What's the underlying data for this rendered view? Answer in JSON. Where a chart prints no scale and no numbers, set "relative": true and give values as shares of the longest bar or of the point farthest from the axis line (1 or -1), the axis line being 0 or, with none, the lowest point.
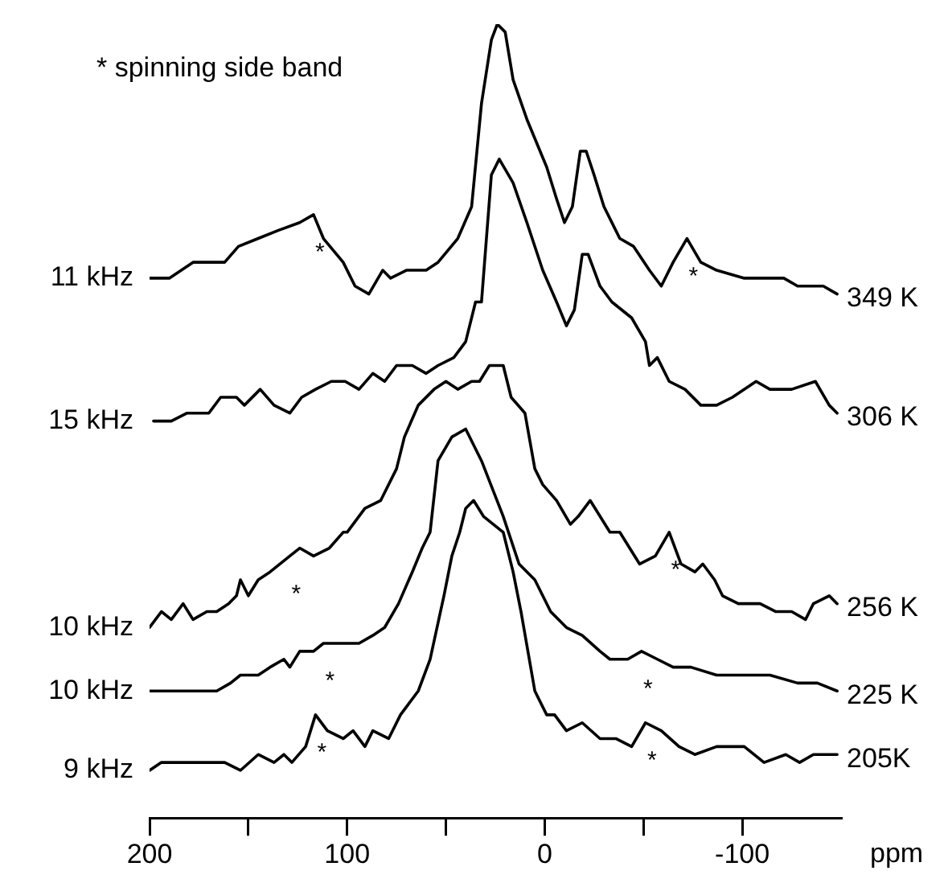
{
  "chart_data": {
    "type": "line",
    "relative": true,
    "xlabel": "ppm",
    "xlim": [
      200,
      -150
    ],
    "xticks": [
      200,
      {
        "value": 150,
        "label": null
      },
      100,
      {
        "value": 50,
        "label": null
      },
      0,
      {
        "value": -50,
        "label": null
      },
      -100
    ],
    "grid": false,
    "legend": false,
    "marker": "none",
    "line_style": "solid",
    "annotations": [
      "* spinning side band",
      {
        "text": "11 kHz",
        "x": 200,
        "y": 0.68
      },
      {
        "text": "15 kHz",
        "x": 200,
        "y": 0.5
      },
      {
        "text": "10 kHz",
        "x": 200,
        "y": 0.24
      },
      {
        "text": "10 kHz",
        "x": 200,
        "y": 0.16
      },
      {
        "text": "9 kHz",
        "x": 200,
        "y": 0.06
      },
      {
        "text": "*",
        "x": 117,
        "y": 0.76
      },
      {
        "text": "*",
        "x": -72,
        "y": 0.73
      },
      {
        "text": "*",
        "x": 129,
        "y": 0.33
      },
      {
        "text": "*",
        "x": -63,
        "y": 0.36
      },
      {
        "text": "*",
        "x": 112,
        "y": 0.22
      },
      {
        "text": "*",
        "x": -49,
        "y": 0.21
      },
      {
        "text": "*",
        "x": 116,
        "y": 0.13
      },
      {
        "text": "*",
        "x": -51,
        "y": 0.12
      }
    ],
    "series": [
      {
        "name": "349 K",
        "color": "#000000",
        "x": [
          200,
          190,
          178,
          162,
          155,
          145,
          135,
          124,
          117,
          112,
          102,
          96,
          89,
          82,
          78,
          70,
          60,
          54,
          44,
          37,
          32,
          27,
          24,
          20,
          16,
          9,
          -1,
          -6,
          -10,
          -14,
          -18,
          -21,
          -25,
          -30,
          -38,
          -45,
          -53,
          -59,
          -65,
          -72,
          -79,
          -87,
          -101,
          -111,
          -121,
          -128,
          -141,
          -148
        ],
        "values": [
          0.68,
          0.68,
          0.7,
          0.7,
          0.72,
          0.73,
          0.74,
          0.75,
          0.76,
          0.73,
          0.7,
          0.67,
          0.66,
          0.69,
          0.68,
          0.69,
          0.69,
          0.7,
          0.73,
          0.77,
          0.9,
          0.98,
          1.0,
          0.99,
          0.93,
          0.88,
          0.82,
          0.78,
          0.75,
          0.77,
          0.84,
          0.84,
          0.81,
          0.77,
          0.73,
          0.72,
          0.69,
          0.67,
          0.7,
          0.73,
          0.7,
          0.69,
          0.68,
          0.68,
          0.68,
          0.67,
          0.67,
          0.66
        ]
      },
      {
        "name": "306 K",
        "color": "#000000",
        "x": [
          198,
          189,
          181,
          170,
          164,
          156,
          152,
          144,
          137,
          129,
          123,
          116,
          108,
          101,
          94,
          87,
          81,
          75,
          67,
          60,
          54,
          46,
          40,
          35,
          32,
          27,
          23,
          16,
          9,
          1,
          -6,
          -11,
          -15,
          -19,
          -22,
          -28,
          -34,
          -44,
          -51,
          -53,
          -57,
          -63,
          -71,
          -79,
          -87,
          -95,
          -107,
          -114,
          -125,
          -137,
          -144,
          -148
        ],
        "values": [
          0.5,
          0.5,
          0.51,
          0.51,
          0.53,
          0.53,
          0.52,
          0.54,
          0.52,
          0.51,
          0.53,
          0.54,
          0.55,
          0.55,
          0.54,
          0.56,
          0.55,
          0.57,
          0.57,
          0.56,
          0.57,
          0.58,
          0.6,
          0.65,
          0.65,
          0.81,
          0.83,
          0.8,
          0.75,
          0.69,
          0.65,
          0.62,
          0.64,
          0.71,
          0.71,
          0.67,
          0.65,
          0.63,
          0.6,
          0.57,
          0.58,
          0.55,
          0.54,
          0.52,
          0.52,
          0.53,
          0.55,
          0.54,
          0.54,
          0.55,
          0.52,
          0.51
        ]
      },
      {
        "name": "256 K",
        "color": "#000000",
        "x": [
          200,
          194,
          189,
          183,
          178,
          171,
          166,
          160,
          156,
          154,
          150,
          145,
          139,
          129,
          124,
          117,
          109,
          102,
          100,
          91,
          83,
          75,
          71,
          64,
          56,
          50,
          44,
          37,
          33,
          28,
          21,
          17,
          10,
          5,
          1,
          -6,
          -13,
          -17,
          -23,
          -28,
          -33,
          -38,
          -48,
          -56,
          -63,
          -69,
          -76,
          -80,
          -86,
          -90,
          -98,
          -109,
          -117,
          -125,
          -132,
          -136,
          -144,
          -148
        ],
        "values": [
          0.24,
          0.26,
          0.25,
          0.27,
          0.25,
          0.26,
          0.26,
          0.27,
          0.28,
          0.3,
          0.28,
          0.3,
          0.31,
          0.33,
          0.34,
          0.33,
          0.34,
          0.36,
          0.36,
          0.39,
          0.4,
          0.44,
          0.48,
          0.52,
          0.54,
          0.55,
          0.54,
          0.55,
          0.55,
          0.57,
          0.57,
          0.53,
          0.51,
          0.44,
          0.42,
          0.4,
          0.37,
          0.38,
          0.4,
          0.38,
          0.36,
          0.36,
          0.32,
          0.33,
          0.36,
          0.32,
          0.31,
          0.32,
          0.3,
          0.28,
          0.27,
          0.27,
          0.26,
          0.26,
          0.25,
          0.27,
          0.28,
          0.27
        ]
      },
      {
        "name": "225 K",
        "color": "#000000",
        "x": [
          200,
          189,
          181,
          175,
          166,
          159,
          154,
          145,
          139,
          132,
          129,
          124,
          117,
          112,
          104,
          94,
          87,
          81,
          74,
          67,
          62,
          58,
          54,
          47,
          40,
          32,
          21,
          13,
          5,
          -3,
          -11,
          -19,
          -28,
          -33,
          -42,
          -49,
          -57,
          -65,
          -74,
          -87,
          -101,
          -114,
          -128,
          -138,
          -148
        ],
        "values": [
          0.16,
          0.16,
          0.16,
          0.16,
          0.16,
          0.17,
          0.18,
          0.18,
          0.19,
          0.2,
          0.19,
          0.21,
          0.21,
          0.22,
          0.22,
          0.22,
          0.23,
          0.24,
          0.27,
          0.31,
          0.34,
          0.36,
          0.45,
          0.48,
          0.49,
          0.45,
          0.38,
          0.32,
          0.3,
          0.26,
          0.24,
          0.23,
          0.21,
          0.2,
          0.2,
          0.21,
          0.2,
          0.19,
          0.19,
          0.18,
          0.18,
          0.18,
          0.17,
          0.17,
          0.16
        ]
      },
      {
        "name": "205K",
        "color": "#000000",
        "x": [
          200,
          194,
          186,
          178,
          170,
          162,
          154,
          145,
          137,
          132,
          128,
          121,
          116,
          110,
          102,
          97,
          91,
          87,
          79,
          73,
          64,
          58,
          51,
          47,
          43,
          40,
          36,
          31,
          21,
          16,
          12,
          5,
          -1,
          -5,
          -11,
          -19,
          -28,
          -36,
          -44,
          -51,
          -59,
          -68,
          -76,
          -87,
          -101,
          -111,
          -122,
          -129,
          -136,
          -148
        ],
        "values": [
          0.06,
          0.07,
          0.07,
          0.07,
          0.07,
          0.07,
          0.06,
          0.08,
          0.07,
          0.08,
          0.07,
          0.09,
          0.13,
          0.11,
          0.1,
          0.11,
          0.09,
          0.11,
          0.1,
          0.13,
          0.16,
          0.2,
          0.28,
          0.33,
          0.36,
          0.39,
          0.4,
          0.38,
          0.36,
          0.31,
          0.26,
          0.16,
          0.13,
          0.13,
          0.11,
          0.12,
          0.1,
          0.1,
          0.09,
          0.12,
          0.11,
          0.09,
          0.08,
          0.09,
          0.09,
          0.07,
          0.08,
          0.07,
          0.08,
          0.08
        ]
      }
    ]
  }
}
